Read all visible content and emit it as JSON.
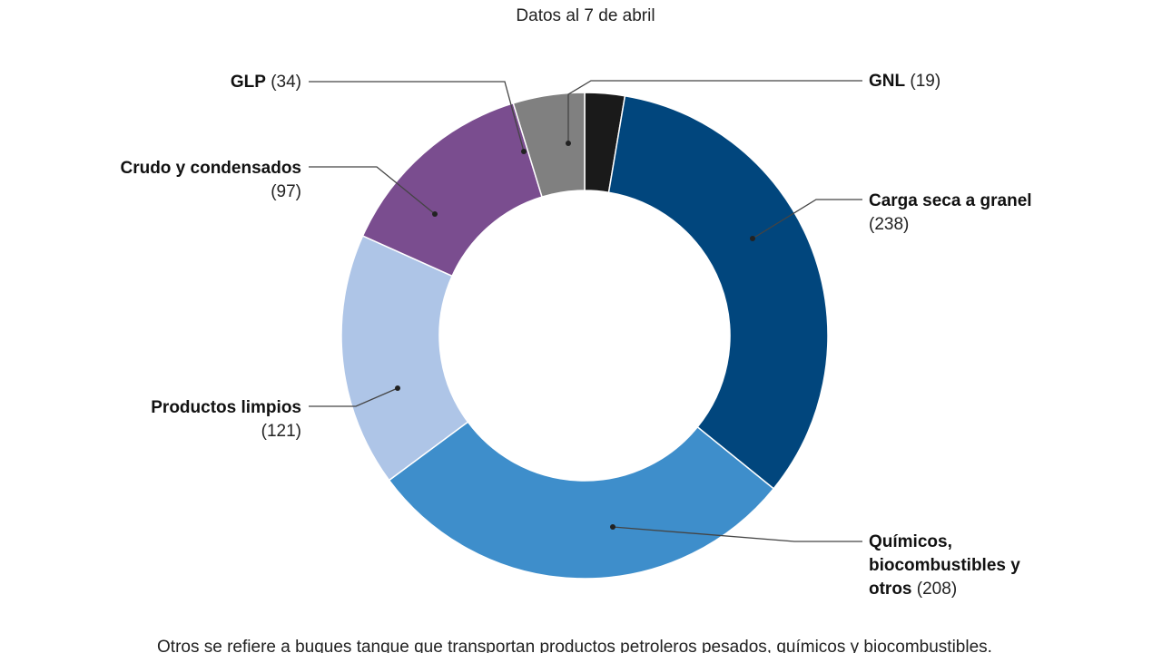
{
  "chart_data": {
    "type": "pie",
    "variant": "donut",
    "subtitle": "Datos al 7 de abril",
    "footnote": "Otros se refiere a buques tanque que transportan productos petroleros pesados, químicos y biocombustibles.",
    "slices": [
      {
        "label": "GNL",
        "value": 19,
        "color": "#1a1a1a"
      },
      {
        "label": "Carga seca a granel",
        "value": 238,
        "color": "#01467d"
      },
      {
        "label": "Químicos, biocombustibles y otros",
        "value": 208,
        "color": "#3e8ecb"
      },
      {
        "label": "Productos limpios",
        "value": 121,
        "color": "#aec5e7"
      },
      {
        "label": "Crudo y condensados",
        "value": 97,
        "color": "#7a4d8f"
      },
      {
        "label": "GLP",
        "value": 34,
        "color": "#808080"
      }
    ]
  }
}
